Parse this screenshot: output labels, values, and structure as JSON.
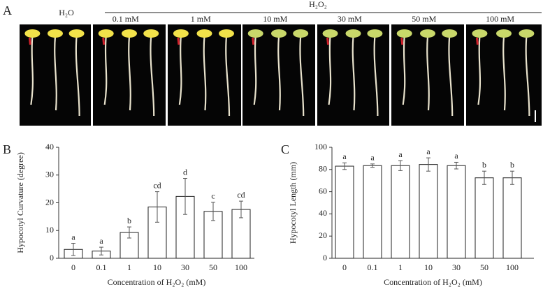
{
  "panel_labels": [
    "A",
    "B",
    "C"
  ],
  "photo": {
    "control_label": "H₂O",
    "treatment_label": "H₂O₂",
    "columns": [
      "0.1 mM",
      "1 mM",
      "10 mM",
      "30 mM",
      "50 mM",
      "100 mM"
    ]
  },
  "chart_data": [
    {
      "type": "bar",
      "y_label": "Hypocotyl Curvature (degree)",
      "x_label": "Concentration of H₂O₂ (mM)",
      "categories": [
        "0",
        "0.1",
        "1",
        "10",
        "30",
        "50",
        "100"
      ],
      "series": [
        {
          "color": "#ffffff",
          "values": [
            3.2,
            2.6,
            9.3,
            18.5,
            22.3,
            16.9,
            17.6
          ],
          "errors": [
            2.2,
            1.4,
            2.0,
            5.5,
            6.5,
            3.3,
            3.0
          ]
        }
      ],
      "annotations": [
        "a",
        "a",
        "b",
        "cd",
        "d",
        "c",
        "cd"
      ],
      "ylim": [
        0,
        40
      ],
      "yticks": [
        0,
        10,
        20,
        30,
        40
      ],
      "grid": false
    },
    {
      "type": "bar",
      "y_label": "Hypocotyl Length (mm)",
      "x_label": "Concentration of H₂O₂ (mM)",
      "categories": [
        "0",
        "0.1",
        "1",
        "10",
        "30",
        "50",
        "100"
      ],
      "series": [
        {
          "color": "#ffffff",
          "values": [
            83,
            83.5,
            83.5,
            84.5,
            83.5,
            72.5,
            72.5
          ],
          "errors": [
            3,
            1.5,
            4.5,
            6,
            3,
            6,
            6
          ]
        }
      ],
      "annotations": [
        "a",
        "a",
        "a",
        "a",
        "a",
        "b",
        "b"
      ],
      "ylim": [
        0,
        100
      ],
      "yticks": [
        0,
        20,
        40,
        60,
        80,
        100
      ],
      "grid": false
    }
  ]
}
